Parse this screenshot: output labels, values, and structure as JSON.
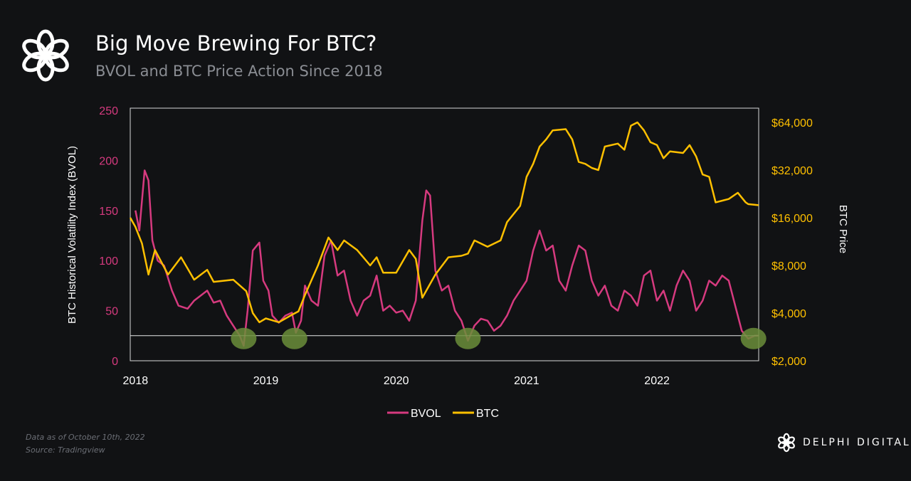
{
  "header": {
    "title": "Big Move Brewing For BTC?",
    "subtitle": "BVOL and BTC Price Action Since 2018"
  },
  "footer": {
    "note": "Data as of October 10th, 2022",
    "source": "Source: Tradingview",
    "brand": "DELPHI DIGITAL"
  },
  "chart_data": {
    "type": "line",
    "title": "Big Move Brewing For BTC?",
    "xlabel": "",
    "ylabel": "BTC Historical Volatility Index (BVOL)",
    "y2label": "BTC Price",
    "xlim": [
      2017.96,
      2022.78
    ],
    "ylim": [
      0,
      250
    ],
    "y2lim": [
      2000,
      78000
    ],
    "y2scale": "log",
    "x_ticks": [
      "2018",
      "2019",
      "2020",
      "2021",
      "2022"
    ],
    "y_ticks": [
      "0",
      "50",
      "100",
      "150",
      "200",
      "250"
    ],
    "y2_ticks": [
      "$2,000",
      "$4,000",
      "$8,000",
      "$16,000",
      "$32,000",
      "$64,000"
    ],
    "threshold_line": 25,
    "highlight_dates": [
      2018.83,
      2019.22,
      2020.55,
      2022.74
    ],
    "legend": {
      "position": "bottom",
      "entries": [
        "BVOL",
        "BTC"
      ]
    },
    "colors": {
      "BVOL": "#d63a7f",
      "BTC": "#ffc000",
      "highlight": "#6b8e3a"
    },
    "series": [
      {
        "name": "BVOL",
        "axis": "left",
        "x": [
          2018.0,
          2018.03,
          2018.07,
          2018.1,
          2018.13,
          2018.17,
          2018.22,
          2018.28,
          2018.33,
          2018.4,
          2018.45,
          2018.5,
          2018.55,
          2018.6,
          2018.65,
          2018.7,
          2018.75,
          2018.8,
          2018.83,
          2018.86,
          2018.9,
          2018.95,
          2018.98,
          2019.02,
          2019.05,
          2019.1,
          2019.15,
          2019.2,
          2019.23,
          2019.27,
          2019.3,
          2019.35,
          2019.4,
          2019.45,
          2019.5,
          2019.55,
          2019.6,
          2019.65,
          2019.7,
          2019.75,
          2019.8,
          2019.85,
          2019.9,
          2019.95,
          2020.0,
          2020.05,
          2020.1,
          2020.15,
          2020.2,
          2020.23,
          2020.26,
          2020.3,
          2020.35,
          2020.4,
          2020.45,
          2020.5,
          2020.55,
          2020.6,
          2020.65,
          2020.7,
          2020.75,
          2020.8,
          2020.85,
          2020.9,
          2020.95,
          2021.0,
          2021.05,
          2021.1,
          2021.15,
          2021.2,
          2021.25,
          2021.3,
          2021.35,
          2021.4,
          2021.45,
          2021.5,
          2021.55,
          2021.6,
          2021.65,
          2021.7,
          2021.75,
          2021.8,
          2021.85,
          2021.9,
          2021.95,
          2022.0,
          2022.05,
          2022.1,
          2022.15,
          2022.2,
          2022.25,
          2022.3,
          2022.35,
          2022.4,
          2022.45,
          2022.5,
          2022.55,
          2022.6,
          2022.65,
          2022.7,
          2022.75,
          2022.78
        ],
        "values": [
          150,
          130,
          190,
          180,
          120,
          100,
          95,
          70,
          55,
          52,
          60,
          65,
          70,
          58,
          60,
          45,
          35,
          25,
          15,
          50,
          110,
          118,
          80,
          70,
          45,
          38,
          45,
          48,
          28,
          40,
          75,
          60,
          55,
          105,
          120,
          85,
          90,
          60,
          45,
          60,
          65,
          85,
          50,
          55,
          48,
          50,
          40,
          60,
          140,
          170,
          165,
          90,
          70,
          75,
          50,
          40,
          20,
          35,
          42,
          40,
          30,
          35,
          45,
          60,
          70,
          80,
          110,
          130,
          110,
          115,
          80,
          70,
          95,
          115,
          110,
          80,
          65,
          75,
          55,
          50,
          70,
          65,
          55,
          85,
          90,
          60,
          70,
          50,
          75,
          90,
          80,
          50,
          60,
          80,
          75,
          85,
          80,
          55,
          30,
          22,
          25,
          25
        ]
      },
      {
        "name": "BTC",
        "axis": "right",
        "x": [
          2017.96,
          2018.0,
          2018.05,
          2018.1,
          2018.15,
          2018.25,
          2018.35,
          2018.45,
          2018.55,
          2018.6,
          2018.75,
          2018.85,
          2018.9,
          2018.95,
          2019.0,
          2019.1,
          2019.2,
          2019.25,
          2019.3,
          2019.4,
          2019.48,
          2019.55,
          2019.6,
          2019.7,
          2019.8,
          2019.85,
          2019.9,
          2020.0,
          2020.1,
          2020.15,
          2020.2,
          2020.3,
          2020.4,
          2020.5,
          2020.55,
          2020.6,
          2020.7,
          2020.8,
          2020.85,
          2020.95,
          2021.0,
          2021.05,
          2021.1,
          2021.15,
          2021.2,
          2021.3,
          2021.35,
          2021.4,
          2021.45,
          2021.5,
          2021.55,
          2021.6,
          2021.7,
          2021.75,
          2021.8,
          2021.85,
          2021.9,
          2021.95,
          2022.0,
          2022.05,
          2022.1,
          2022.2,
          2022.25,
          2022.3,
          2022.35,
          2022.4,
          2022.45,
          2022.55,
          2022.62,
          2022.68,
          2022.7,
          2022.78
        ],
        "values": [
          16000,
          14000,
          11000,
          7000,
          10000,
          7000,
          9000,
          6500,
          7500,
          6300,
          6500,
          5500,
          4000,
          3500,
          3700,
          3500,
          3900,
          4100,
          5200,
          8000,
          12000,
          10000,
          11500,
          10000,
          8000,
          9000,
          7200,
          7200,
          10000,
          8800,
          5000,
          7000,
          9000,
          9200,
          9500,
          11500,
          10500,
          11500,
          15000,
          19000,
          29000,
          35000,
          45000,
          50000,
          57000,
          58000,
          50000,
          36000,
          35000,
          33000,
          32000,
          45000,
          47000,
          43000,
          61000,
          64000,
          57000,
          48000,
          46000,
          38000,
          42000,
          41000,
          46000,
          39000,
          30000,
          29000,
          20000,
          21000,
          23000,
          20000,
          19500,
          19200
        ]
      }
    ]
  }
}
